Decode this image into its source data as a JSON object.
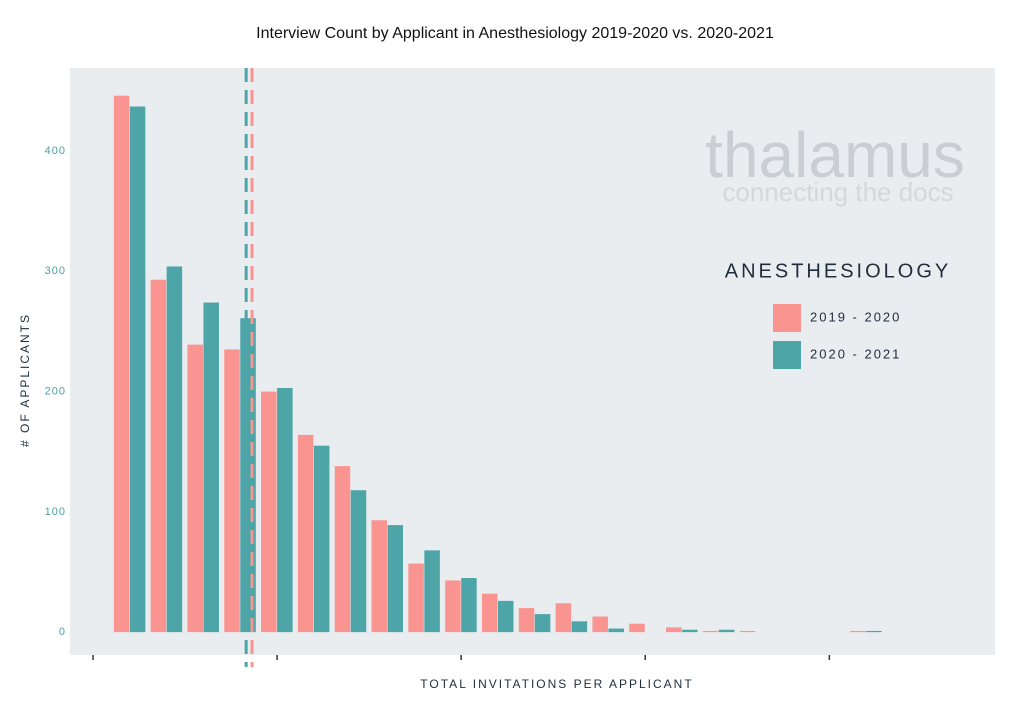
{
  "chart_data": {
    "type": "bar",
    "title": "Interview Count by Applicant in Anesthesiology 2019-2020 vs. 2020-2021",
    "x_label": "TOTAL INVITATIONS PER APPLICANT",
    "y_label": "# OF APPLICANTS",
    "legend_title": "ANESTHESIOLOGY",
    "watermark": [
      "thalamus",
      "connecting the docs"
    ],
    "x": [
      1,
      2,
      3,
      4,
      5,
      6,
      7,
      8,
      9,
      10,
      11,
      12,
      13,
      14,
      15,
      16,
      17,
      18,
      19,
      20,
      21
    ],
    "series": [
      {
        "name": "2019 - 2020",
        "color": "#f99490",
        "values": [
          446,
          293,
          239,
          235,
          200,
          164,
          138,
          93,
          57,
          43,
          32,
          20,
          24,
          13,
          7,
          4,
          1,
          1,
          0,
          0,
          1
        ],
        "median": 4.32
      },
      {
        "name": "2020 - 2021",
        "color": "#4ea5a8",
        "values": [
          437,
          304,
          274,
          261,
          203,
          155,
          118,
          89,
          68,
          45,
          26,
          15,
          9,
          3,
          0,
          2,
          2,
          0,
          0,
          0,
          1
        ],
        "median": 4.16
      }
    ],
    "xlim": [
      -0.625,
      24.5
    ],
    "xticks": [
      0,
      5,
      10,
      15,
      20
    ],
    "ylim": [
      -19,
      469
    ],
    "yticks": [
      0,
      100,
      200,
      300,
      400
    ],
    "background": "#eaedf0"
  }
}
